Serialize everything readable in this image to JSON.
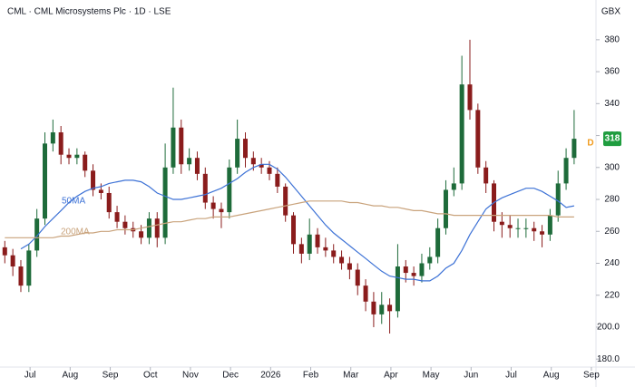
{
  "chart_data": {
    "type": "candlestick",
    "title": "CML · CML Microsystems Plc · 1D · LSE",
    "currency": "GBX",
    "marker_label": "D",
    "up_color": "#1e6b3a",
    "down_color": "#8a1c1c",
    "xlim": [
      -0.75,
      14.07
    ],
    "ylim": [
      175,
      389
    ],
    "xticks": [
      {
        "value": 0,
        "label": "Jul"
      },
      {
        "value": 1,
        "label": "Aug"
      },
      {
        "value": 2,
        "label": "Sep"
      },
      {
        "value": 3,
        "label": "Oct"
      },
      {
        "value": 4,
        "label": "Nov"
      },
      {
        "value": 5,
        "label": "Dec"
      },
      {
        "value": 6,
        "label": "2026"
      },
      {
        "value": 7,
        "label": "Feb"
      },
      {
        "value": 8,
        "label": "Mar"
      },
      {
        "value": 9,
        "label": "Apr"
      },
      {
        "value": 10,
        "label": "May"
      },
      {
        "value": 11,
        "label": "Jun"
      },
      {
        "value": 12,
        "label": "Jul"
      },
      {
        "value": 13,
        "label": "Aug"
      },
      {
        "value": 14,
        "label": "Sep"
      }
    ],
    "yticks": [
      {
        "value": 180,
        "label": "180.0"
      },
      {
        "value": 200,
        "label": "200.0"
      },
      220,
      240,
      260,
      280,
      300,
      320,
      340,
      360,
      380
    ],
    "x": [
      -0.63,
      -0.43,
      -0.23,
      -0.03,
      0.17,
      0.37,
      0.57,
      0.77,
      0.97,
      1.17,
      1.37,
      1.57,
      1.77,
      1.97,
      2.17,
      2.37,
      2.57,
      2.77,
      2.97,
      3.17,
      3.37,
      3.57,
      3.77,
      3.97,
      4.17,
      4.37,
      4.57,
      4.77,
      4.97,
      5.17,
      5.37,
      5.57,
      5.77,
      5.97,
      6.17,
      6.37,
      6.57,
      6.77,
      6.97,
      7.17,
      7.37,
      7.57,
      7.77,
      7.97,
      8.17,
      8.37,
      8.57,
      8.77,
      8.97,
      9.17,
      9.37,
      9.57,
      9.77,
      9.97,
      10.17,
      10.37,
      10.57,
      10.77,
      10.97,
      11.17,
      11.37,
      11.57,
      11.77,
      11.97,
      12.17,
      12.37,
      12.57,
      12.77,
      12.97,
      13.17,
      13.37,
      13.57
    ],
    "open": [
      250,
      245,
      238,
      226,
      248,
      268,
      315,
      322,
      308,
      306,
      308,
      298,
      286,
      284,
      272,
      266,
      262,
      260,
      256,
      268,
      256,
      300,
      325,
      302,
      306,
      296,
      278,
      274,
      272,
      300,
      318,
      306,
      302,
      300,
      296,
      288,
      270,
      252,
      246,
      258,
      250,
      248,
      244,
      240,
      236,
      226,
      216,
      208,
      214,
      210,
      238,
      234,
      232,
      240,
      244,
      262,
      286,
      290,
      352,
      336,
      300,
      290,
      266,
      264,
      262,
      262,
      262,
      260,
      258,
      270,
      290,
      306
    ],
    "high": [
      254,
      249,
      242,
      252,
      274,
      322,
      330,
      326,
      312,
      312,
      310,
      302,
      290,
      288,
      276,
      270,
      266,
      264,
      272,
      272,
      315,
      350,
      330,
      312,
      310,
      300,
      282,
      278,
      305,
      330,
      322,
      310,
      306,
      304,
      300,
      290,
      272,
      256,
      268,
      262,
      256,
      252,
      248,
      244,
      240,
      230,
      222,
      222,
      218,
      252,
      242,
      238,
      246,
      250,
      268,
      292,
      300,
      370,
      380,
      340,
      304,
      292,
      272,
      270,
      268,
      268,
      266,
      264,
      274,
      298,
      312,
      336
    ],
    "low": [
      240,
      232,
      222,
      222,
      244,
      264,
      310,
      302,
      302,
      302,
      294,
      282,
      280,
      268,
      262,
      258,
      256,
      252,
      252,
      250,
      252,
      296,
      296,
      298,
      292,
      274,
      268,
      262,
      268,
      296,
      300,
      298,
      296,
      292,
      284,
      266,
      246,
      240,
      242,
      246,
      244,
      240,
      236,
      230,
      220,
      210,
      200,
      202,
      196,
      206,
      228,
      226,
      228,
      236,
      240,
      258,
      282,
      286,
      330,
      296,
      284,
      260,
      256,
      256,
      256,
      256,
      254,
      250,
      254,
      266,
      286,
      302
    ],
    "close": [
      245,
      238,
      226,
      248,
      268,
      315,
      322,
      308,
      306,
      308,
      298,
      286,
      284,
      272,
      266,
      262,
      260,
      256,
      268,
      256,
      300,
      325,
      302,
      306,
      296,
      278,
      274,
      272,
      300,
      318,
      306,
      302,
      300,
      296,
      288,
      270,
      252,
      246,
      258,
      250,
      248,
      244,
      240,
      236,
      226,
      216,
      208,
      214,
      210,
      238,
      234,
      232,
      240,
      244,
      262,
      286,
      290,
      352,
      336,
      300,
      290,
      266,
      264,
      262,
      262,
      262,
      260,
      258,
      270,
      290,
      306,
      318
    ],
    "series": [
      {
        "name": "50MA",
        "color": "#3d72d6",
        "values": [
          null,
          null,
          249,
          252,
          257,
          263,
          268,
          273,
          278,
          282,
          285,
          287,
          288,
          290,
          291,
          292,
          292,
          291,
          288,
          284,
          282,
          280,
          280,
          281,
          282,
          283,
          285,
          287,
          290,
          293,
          297,
          300,
          302,
          302,
          299,
          294,
          288,
          282,
          276,
          270,
          264,
          259,
          255,
          251,
          247,
          243,
          239,
          235,
          232,
          231,
          230,
          230,
          229,
          229,
          232,
          237,
          240,
          248,
          258,
          266,
          274,
          278,
          281,
          283,
          285,
          287,
          287,
          285,
          282,
          279,
          275,
          276
        ]
      },
      {
        "name": "200MA",
        "color": "#c9a37c",
        "values": [
          256,
          256,
          256,
          256,
          256,
          256,
          256,
          257,
          257,
          258,
          259,
          259,
          260,
          260,
          261,
          261,
          261,
          262,
          263,
          264,
          265,
          266,
          266,
          267,
          268,
          268,
          269,
          269,
          269,
          270,
          271,
          272,
          273,
          274,
          275,
          276,
          277,
          278,
          279,
          279,
          279,
          279,
          279,
          278,
          278,
          277,
          276,
          276,
          275,
          275,
          274,
          273,
          273,
          272,
          271,
          271,
          270,
          270,
          270,
          270,
          270,
          270,
          270,
          270,
          270,
          270,
          270,
          270,
          270,
          269,
          269,
          269
        ]
      }
    ]
  }
}
